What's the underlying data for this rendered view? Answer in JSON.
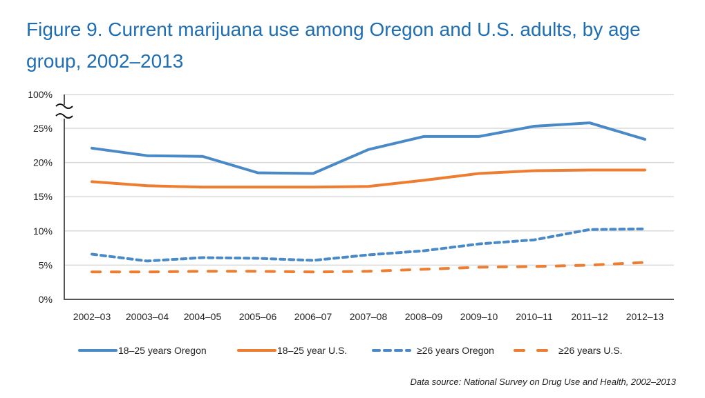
{
  "title": "Figure 9. Current marijuana use among Oregon and U.S. adults, by age group, 2002–2013",
  "source": "Data source: National Survey on Drug Use and Health, 2002–2013",
  "chart_data": {
    "type": "line",
    "title": "Figure 9. Current marijuana use among Oregon and U.S. adults, by age group, 2002–2013",
    "xlabel": "",
    "ylabel": "",
    "categories": [
      "2002–03",
      "20003–04",
      "2004–05",
      "2005–06",
      "2006–07",
      "2007–08",
      "2008–09",
      "2009–10",
      "2010–11",
      "2011–12",
      "2012–13"
    ],
    "y_ticks": [
      "0%",
      "5%",
      "10%",
      "15%",
      "20%",
      "25%",
      "100%"
    ],
    "y_tick_values": [
      0,
      5,
      10,
      15,
      20,
      25,
      100
    ],
    "ylim": [
      0,
      25
    ],
    "y_axis_break": "between 25% and 100%",
    "grid": true,
    "legend_position": "bottom",
    "series": [
      {
        "name": "18–25 years Oregon",
        "color": "#4a89c8",
        "style": "solid",
        "values": [
          22.1,
          21.0,
          20.9,
          18.5,
          18.4,
          21.9,
          23.8,
          23.8,
          25.3,
          25.8,
          23.4
        ]
      },
      {
        "name": "18–25 year U.S.",
        "color": "#ed7d31",
        "style": "solid",
        "values": [
          17.2,
          16.6,
          16.4,
          16.4,
          16.4,
          16.5,
          17.4,
          18.4,
          18.8,
          18.9,
          18.9
        ]
      },
      {
        "name": "≥26 years Oregon",
        "color": "#4a89c8",
        "style": "dotted-dash",
        "values": [
          6.6,
          5.6,
          6.1,
          6.0,
          5.7,
          6.5,
          7.1,
          8.1,
          8.7,
          10.2,
          10.3
        ]
      },
      {
        "name": "≥26 years U.S.",
        "color": "#ed7d31",
        "style": "dash",
        "values": [
          4.0,
          4.0,
          4.1,
          4.1,
          4.0,
          4.1,
          4.4,
          4.7,
          4.8,
          5.0,
          5.4
        ]
      }
    ]
  }
}
